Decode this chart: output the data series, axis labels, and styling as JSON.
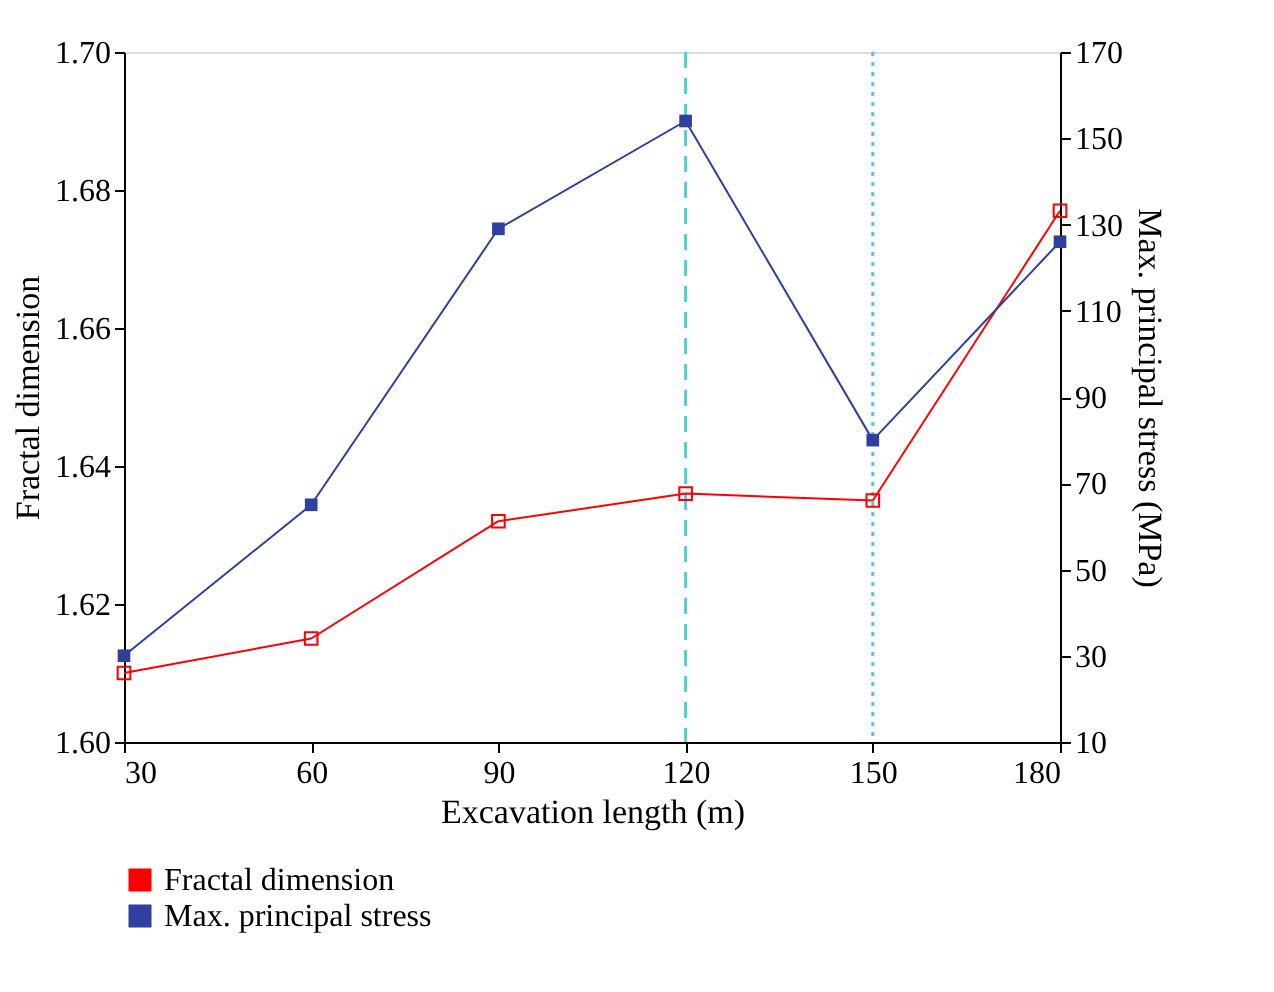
{
  "chart_data": {
    "type": "line",
    "xlabel": "Excavation length (m)",
    "ylabel": "Fractal dimension",
    "y2label": "Max. principal stress (MPa)",
    "x": [
      30,
      60,
      90,
      120,
      150,
      180
    ],
    "series": [
      {
        "name": "Fractal dimension",
        "color": "#ff0000",
        "values": [
          1.61,
          1.615,
          1.632,
          1.636,
          1.635,
          1.677
        ]
      },
      {
        "name": "Max. principal stress",
        "color": "#2e3f9e",
        "axis": "y2",
        "values": [
          30,
          65,
          129,
          154,
          80,
          126
        ]
      }
    ],
    "xlim": [
      30,
      180
    ],
    "xticks": [
      30,
      60,
      90,
      120,
      150,
      180
    ],
    "ylim": [
      1.6,
      1.7
    ],
    "yticks": [
      {
        "value": 1.6,
        "label": "1.60"
      },
      1.62,
      1.64,
      1.66,
      1.68,
      {
        "value": 1.7,
        "label": "1.70"
      }
    ],
    "y2lim": [
      10,
      170
    ],
    "y2ticks": [
      10,
      30,
      50,
      70,
      90,
      110,
      130,
      150,
      170
    ],
    "ref_lines": [
      {
        "axis": "x",
        "value": 120,
        "color": "#4fd0d8",
        "line_style": "dashed"
      },
      {
        "axis": "x",
        "value": 150,
        "color": "#4fc8e8",
        "line_style": "dotted"
      }
    ],
    "marker": "square",
    "line_style": "solid",
    "grid": false,
    "legend": "bottom left"
  }
}
